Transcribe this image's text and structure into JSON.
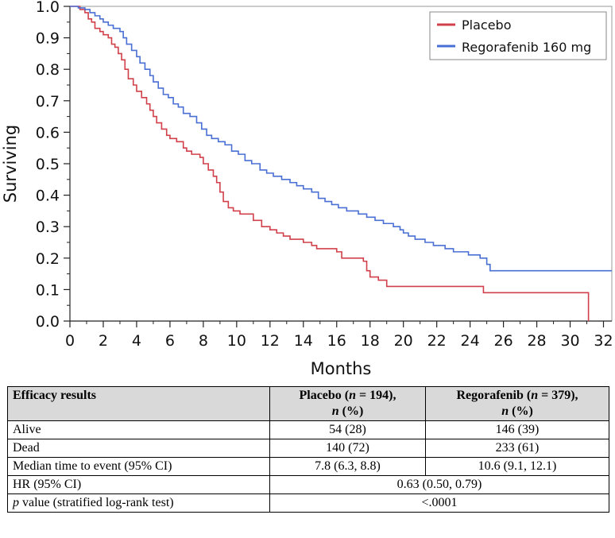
{
  "chart_data": {
    "type": "line",
    "title": "",
    "xlabel": "Months",
    "ylabel": "Surviving",
    "xlim": [
      0,
      32.5
    ],
    "ylim": [
      0,
      1
    ],
    "xticks": [
      0,
      2,
      4,
      6,
      8,
      10,
      12,
      14,
      16,
      18,
      20,
      22,
      24,
      26,
      28,
      30,
      32
    ],
    "yticks": [
      0.0,
      0.1,
      0.2,
      0.3,
      0.4,
      0.5,
      0.6,
      0.7,
      0.8,
      0.9,
      1.0
    ],
    "ytick_labels": [
      "0.0",
      "0.1",
      "0.2",
      "0.3",
      "0.4",
      "0.5",
      "0.6",
      "0.7",
      "0.8",
      "0.9",
      "1.0"
    ],
    "legend": "top-right",
    "series": [
      {
        "name": "Placebo",
        "color": "#d1404a",
        "step": true,
        "points": [
          [
            0,
            1.0
          ],
          [
            0.3,
            1.0
          ],
          [
            0.6,
            0.99
          ],
          [
            0.9,
            0.98
          ],
          [
            1.1,
            0.96
          ],
          [
            1.3,
            0.95
          ],
          [
            1.5,
            0.93
          ],
          [
            1.8,
            0.92
          ],
          [
            2.0,
            0.91
          ],
          [
            2.3,
            0.9
          ],
          [
            2.5,
            0.88
          ],
          [
            2.7,
            0.87
          ],
          [
            2.9,
            0.85
          ],
          [
            3.1,
            0.83
          ],
          [
            3.3,
            0.8
          ],
          [
            3.5,
            0.77
          ],
          [
            3.8,
            0.75
          ],
          [
            4.0,
            0.73
          ],
          [
            4.3,
            0.71
          ],
          [
            4.6,
            0.69
          ],
          [
            4.8,
            0.67
          ],
          [
            5.0,
            0.65
          ],
          [
            5.2,
            0.63
          ],
          [
            5.5,
            0.61
          ],
          [
            5.8,
            0.59
          ],
          [
            6.0,
            0.58
          ],
          [
            6.4,
            0.57
          ],
          [
            6.8,
            0.55
          ],
          [
            7.0,
            0.54
          ],
          [
            7.3,
            0.53
          ],
          [
            7.8,
            0.52
          ],
          [
            8.0,
            0.5
          ],
          [
            8.3,
            0.48
          ],
          [
            8.6,
            0.46
          ],
          [
            8.8,
            0.44
          ],
          [
            9.0,
            0.41
          ],
          [
            9.2,
            0.38
          ],
          [
            9.5,
            0.36
          ],
          [
            9.8,
            0.35
          ],
          [
            10.2,
            0.34
          ],
          [
            11.0,
            0.32
          ],
          [
            11.5,
            0.3
          ],
          [
            12.0,
            0.29
          ],
          [
            12.4,
            0.28
          ],
          [
            12.8,
            0.27
          ],
          [
            13.2,
            0.26
          ],
          [
            14.0,
            0.25
          ],
          [
            14.5,
            0.24
          ],
          [
            14.8,
            0.23
          ],
          [
            16.0,
            0.22
          ],
          [
            16.3,
            0.2
          ],
          [
            17.6,
            0.19
          ],
          [
            17.8,
            0.16
          ],
          [
            18.0,
            0.14
          ],
          [
            18.5,
            0.13
          ],
          [
            19.0,
            0.11
          ],
          [
            24.8,
            0.09
          ],
          [
            31.1,
            0.0
          ]
        ],
        "end_x": 31.1
      },
      {
        "name": "Regorafenib 160 mg",
        "color": "#4a6fd4",
        "step": true,
        "points": [
          [
            0,
            1.0
          ],
          [
            0.5,
            0.995
          ],
          [
            0.9,
            0.99
          ],
          [
            1.2,
            0.98
          ],
          [
            1.5,
            0.97
          ],
          [
            1.8,
            0.96
          ],
          [
            2.0,
            0.95
          ],
          [
            2.3,
            0.94
          ],
          [
            2.6,
            0.93
          ],
          [
            3.0,
            0.92
          ],
          [
            3.2,
            0.9
          ],
          [
            3.4,
            0.88
          ],
          [
            3.7,
            0.86
          ],
          [
            4.0,
            0.84
          ],
          [
            4.2,
            0.82
          ],
          [
            4.5,
            0.8
          ],
          [
            4.8,
            0.78
          ],
          [
            5.0,
            0.76
          ],
          [
            5.3,
            0.74
          ],
          [
            5.6,
            0.72
          ],
          [
            5.9,
            0.71
          ],
          [
            6.2,
            0.69
          ],
          [
            6.5,
            0.68
          ],
          [
            6.8,
            0.66
          ],
          [
            7.2,
            0.65
          ],
          [
            7.6,
            0.63
          ],
          [
            7.9,
            0.61
          ],
          [
            8.2,
            0.59
          ],
          [
            8.5,
            0.58
          ],
          [
            8.9,
            0.57
          ],
          [
            9.3,
            0.56
          ],
          [
            9.7,
            0.54
          ],
          [
            10.1,
            0.53
          ],
          [
            10.5,
            0.51
          ],
          [
            10.9,
            0.5
          ],
          [
            11.4,
            0.48
          ],
          [
            11.8,
            0.47
          ],
          [
            12.2,
            0.46
          ],
          [
            12.7,
            0.45
          ],
          [
            13.2,
            0.44
          ],
          [
            13.6,
            0.43
          ],
          [
            14.0,
            0.42
          ],
          [
            14.5,
            0.41
          ],
          [
            14.9,
            0.39
          ],
          [
            15.3,
            0.38
          ],
          [
            15.7,
            0.37
          ],
          [
            16.1,
            0.36
          ],
          [
            16.6,
            0.35
          ],
          [
            17.3,
            0.34
          ],
          [
            17.8,
            0.33
          ],
          [
            18.3,
            0.32
          ],
          [
            18.8,
            0.31
          ],
          [
            19.4,
            0.3
          ],
          [
            19.8,
            0.29
          ],
          [
            20.0,
            0.28
          ],
          [
            20.3,
            0.27
          ],
          [
            20.7,
            0.26
          ],
          [
            21.3,
            0.25
          ],
          [
            21.8,
            0.24
          ],
          [
            22.5,
            0.23
          ],
          [
            23.0,
            0.22
          ],
          [
            23.9,
            0.21
          ],
          [
            24.6,
            0.2
          ],
          [
            25.0,
            0.18
          ],
          [
            25.2,
            0.16
          ]
        ],
        "end_x": 32.5
      }
    ]
  },
  "table": {
    "headers": {
      "c1": "Efficacy results",
      "c2_main": "Placebo (",
      "c2_n": "n",
      "c2_rest": " = 194),",
      "c2_pct_n": "n",
      "c2_pct": " (%)",
      "c3_main": "Regorafenib (",
      "c3_n": "n",
      "c3_rest": " = 379),",
      "c3_pct_n": "n",
      "c3_pct": " (%)"
    },
    "rows": {
      "alive": {
        "label": "Alive",
        "placebo": "54 (28)",
        "rego": "146 (39)"
      },
      "dead": {
        "label": "Dead",
        "placebo": "140 (72)",
        "rego": "233 (61)"
      },
      "median": {
        "label": "Median time to event (95% CI)",
        "placebo": "7.8 (6.3, 8.8)",
        "rego": "10.6 (9.1, 12.1)"
      },
      "hr": {
        "label": "HR (95% CI)",
        "value": "0.63 (0.50, 0.79)"
      },
      "pval": {
        "label_p": "p",
        "label_rest": " value (stratified log-rank test)",
        "value": "<.0001"
      }
    }
  }
}
